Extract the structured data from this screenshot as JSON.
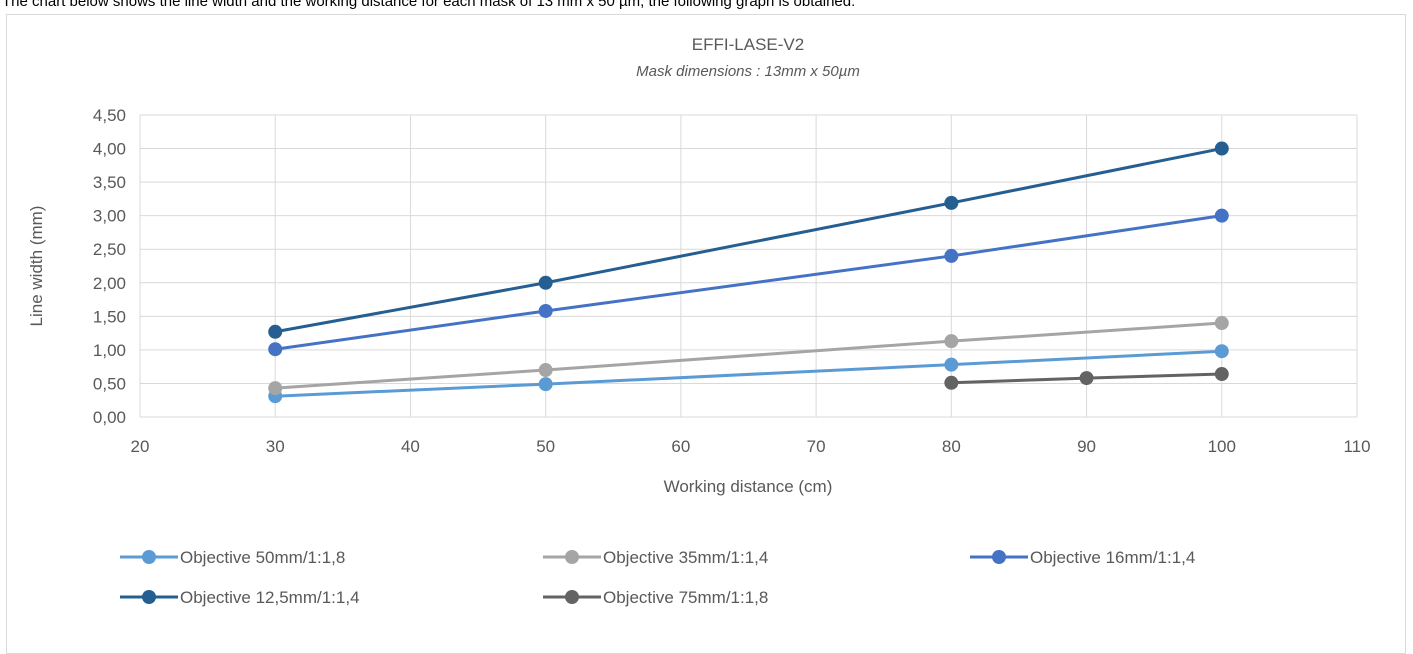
{
  "caption": "The chart below shows the line width and the working distance for each mask of 13 mm x 50 µm, the following graph is obtained:",
  "chart_data": {
    "type": "line",
    "title": "EFFI-LASE-V2",
    "subtitle": "Mask dimensions : 13mm x 50µm",
    "xlabel": "Working distance (cm)",
    "ylabel": "Line width (mm)",
    "xlim": [
      20,
      110
    ],
    "ylim": [
      0,
      4.5
    ],
    "x_ticks": [
      "20",
      "30",
      "40",
      "50",
      "60",
      "70",
      "80",
      "90",
      "100",
      "110"
    ],
    "y_ticks": [
      "0,00",
      "0,50",
      "1,00",
      "1,50",
      "2,00",
      "2,50",
      "3,00",
      "3,50",
      "4,00",
      "4,50"
    ],
    "grid": true,
    "legend_position": "bottom",
    "series": [
      {
        "name": "Objective 50mm/1:1,8",
        "color": "#5b9bd5",
        "x": [
          30,
          50,
          80,
          100
        ],
        "y": [
          0.31,
          0.49,
          0.78,
          0.98
        ]
      },
      {
        "name": "Objective 35mm/1:1,4",
        "color": "#a5a5a5",
        "x": [
          30,
          50,
          80,
          100
        ],
        "y": [
          0.43,
          0.7,
          1.13,
          1.4
        ]
      },
      {
        "name": "Objective 16mm/1:1,4",
        "color": "#4472c4",
        "x": [
          30,
          50,
          80,
          100
        ],
        "y": [
          1.01,
          1.58,
          2.4,
          3.0
        ]
      },
      {
        "name": "Objective 12,5mm/1:1,4",
        "color": "#255e91",
        "x": [
          30,
          50,
          80,
          100
        ],
        "y": [
          1.27,
          2.0,
          3.19,
          4.0
        ]
      },
      {
        "name": "Objective 75mm/1:1,8",
        "color": "#636363",
        "x": [
          80,
          90,
          100
        ],
        "y": [
          0.51,
          0.58,
          0.64
        ]
      }
    ]
  }
}
